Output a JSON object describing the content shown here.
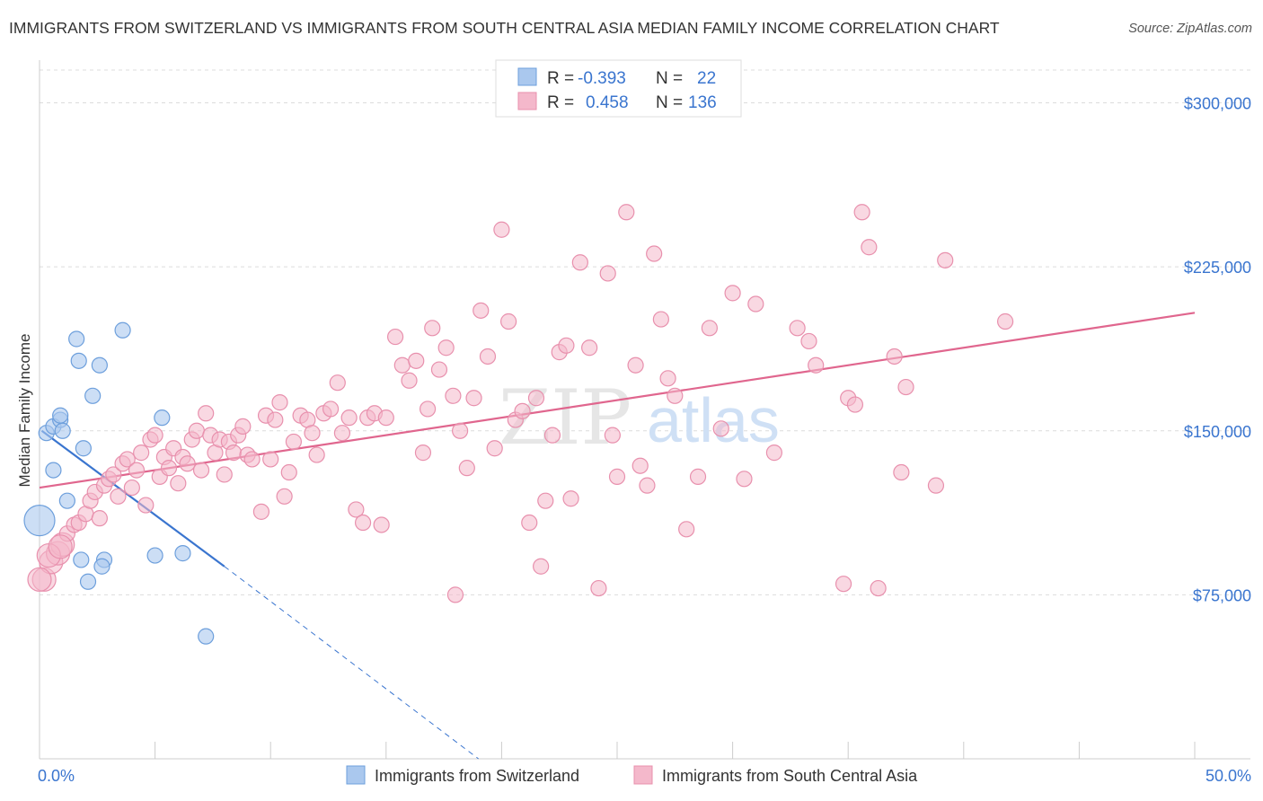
{
  "title": "IMMIGRANTS FROM SWITZERLAND VS IMMIGRANTS FROM SOUTH CENTRAL ASIA MEDIAN FAMILY INCOME CORRELATION CHART",
  "source": "Source: ZipAtlas.com",
  "watermark": {
    "zip": "ZIP",
    "atlas": "atlas"
  },
  "colors": {
    "blue_fill": "#aac8ee",
    "blue_stroke": "#6d9fdc",
    "blue_line": "#3a75cf",
    "pink_fill": "#f4b8cb",
    "pink_stroke": "#e890ad",
    "pink_line": "#e0668e",
    "value_text": "#3a75cf",
    "grid": "#dcdcdc"
  },
  "legend": {
    "rows": [
      {
        "r_label": "R =",
        "r_value": "-0.393",
        "n_label": "N =",
        "n_value": "22",
        "color": "blue"
      },
      {
        "r_label": "R =",
        "r_value": "0.458",
        "n_label": "N =",
        "n_value": "136",
        "color": "pink"
      }
    ]
  },
  "chart_data": {
    "type": "scatter",
    "xlabel": "",
    "ylabel": "Median Family Income",
    "xlim": [
      0,
      50
    ],
    "ylim": [
      0,
      315000
    ],
    "x_ticks_labels": [
      "0.0%",
      "50.0%"
    ],
    "y_ticks": [
      75000,
      150000,
      225000,
      300000
    ],
    "y_tick_labels": [
      "$75,000",
      "$150,000",
      "$225,000",
      "$300,000"
    ],
    "grid": "horizontal-dashed",
    "legend_position": "bottom",
    "series": [
      {
        "name": "Immigrants from Switzerland",
        "color": "blue",
        "trend": {
          "x0": 0.1,
          "y0": 150000,
          "x1": 8.0,
          "y1": 88000,
          "dash_to_x": 19.0,
          "dash_to_y": 0
        },
        "points": [
          [
            0.3,
            149000
          ],
          [
            0.6,
            152000
          ],
          [
            0.9,
            155000
          ],
          [
            0.9,
            157000
          ],
          [
            1.0,
            150000
          ],
          [
            0.6,
            132000
          ],
          [
            1.2,
            118000
          ],
          [
            1.6,
            192000
          ],
          [
            1.7,
            182000
          ],
          [
            1.9,
            142000
          ],
          [
            2.3,
            166000
          ],
          [
            2.6,
            180000
          ],
          [
            3.6,
            196000
          ],
          [
            5.3,
            156000
          ],
          [
            0.0,
            109000
          ],
          [
            1.8,
            91000
          ],
          [
            2.8,
            91000
          ],
          [
            2.7,
            88000
          ],
          [
            2.1,
            81000
          ],
          [
            5.0,
            93000
          ],
          [
            6.2,
            94000
          ],
          [
            7.2,
            56000
          ]
        ],
        "big_point_index": 14
      },
      {
        "name": "Immigrants from South Central Asia",
        "color": "pink",
        "trend": {
          "x0": 0.0,
          "y0": 124000,
          "x1": 50.0,
          "y1": 204000
        },
        "points": [
          [
            0.2,
            82000
          ],
          [
            0.5,
            90000
          ],
          [
            0.8,
            94000
          ],
          [
            1.0,
            98000
          ],
          [
            1.2,
            103000
          ],
          [
            1.5,
            107000
          ],
          [
            1.7,
            108000
          ],
          [
            2.0,
            112000
          ],
          [
            2.2,
            118000
          ],
          [
            2.4,
            122000
          ],
          [
            2.6,
            110000
          ],
          [
            2.8,
            125000
          ],
          [
            3.0,
            128000
          ],
          [
            3.2,
            130000
          ],
          [
            3.4,
            120000
          ],
          [
            3.6,
            135000
          ],
          [
            3.8,
            137000
          ],
          [
            4.0,
            124000
          ],
          [
            4.2,
            132000
          ],
          [
            4.4,
            140000
          ],
          [
            4.6,
            116000
          ],
          [
            4.8,
            146000
          ],
          [
            5.0,
            148000
          ],
          [
            5.2,
            129000
          ],
          [
            5.4,
            138000
          ],
          [
            5.6,
            133000
          ],
          [
            5.8,
            142000
          ],
          [
            6.0,
            126000
          ],
          [
            6.2,
            138000
          ],
          [
            6.4,
            135000
          ],
          [
            6.6,
            146000
          ],
          [
            6.8,
            150000
          ],
          [
            7.0,
            132000
          ],
          [
            7.2,
            158000
          ],
          [
            7.4,
            148000
          ],
          [
            7.6,
            140000
          ],
          [
            7.8,
            146000
          ],
          [
            8.0,
            130000
          ],
          [
            8.2,
            145000
          ],
          [
            8.4,
            140000
          ],
          [
            8.6,
            148000
          ],
          [
            8.8,
            152000
          ],
          [
            9.0,
            139000
          ],
          [
            9.2,
            137000
          ],
          [
            9.6,
            113000
          ],
          [
            9.8,
            157000
          ],
          [
            10.0,
            137000
          ],
          [
            10.2,
            155000
          ],
          [
            10.4,
            163000
          ],
          [
            10.6,
            120000
          ],
          [
            10.8,
            131000
          ],
          [
            11.0,
            145000
          ],
          [
            11.3,
            157000
          ],
          [
            11.6,
            155000
          ],
          [
            11.8,
            149000
          ],
          [
            12.0,
            139000
          ],
          [
            12.3,
            158000
          ],
          [
            12.6,
            160000
          ],
          [
            12.9,
            172000
          ],
          [
            13.1,
            149000
          ],
          [
            13.4,
            156000
          ],
          [
            13.7,
            114000
          ],
          [
            14.0,
            108000
          ],
          [
            14.2,
            156000
          ],
          [
            14.5,
            158000
          ],
          [
            14.8,
            107000
          ],
          [
            15.0,
            156000
          ],
          [
            15.4,
            193000
          ],
          [
            15.7,
            180000
          ],
          [
            16.0,
            173000
          ],
          [
            16.3,
            182000
          ],
          [
            16.6,
            140000
          ],
          [
            16.8,
            160000
          ],
          [
            17.0,
            197000
          ],
          [
            17.3,
            178000
          ],
          [
            17.6,
            188000
          ],
          [
            17.9,
            166000
          ],
          [
            18.2,
            150000
          ],
          [
            18.5,
            133000
          ],
          [
            18.8,
            165000
          ],
          [
            19.1,
            205000
          ],
          [
            19.4,
            184000
          ],
          [
            19.7,
            142000
          ],
          [
            20.0,
            242000
          ],
          [
            20.3,
            200000
          ],
          [
            20.6,
            155000
          ],
          [
            20.9,
            159000
          ],
          [
            21.2,
            108000
          ],
          [
            21.5,
            165000
          ],
          [
            21.7,
            88000
          ],
          [
            21.9,
            118000
          ],
          [
            22.2,
            148000
          ],
          [
            22.5,
            186000
          ],
          [
            22.8,
            189000
          ],
          [
            23.0,
            119000
          ],
          [
            23.4,
            227000
          ],
          [
            23.8,
            188000
          ],
          [
            24.2,
            78000
          ],
          [
            24.6,
            222000
          ],
          [
            24.8,
            148000
          ],
          [
            25.0,
            129000
          ],
          [
            25.4,
            250000
          ],
          [
            25.8,
            180000
          ],
          [
            26.0,
            134000
          ],
          [
            26.3,
            125000
          ],
          [
            26.6,
            231000
          ],
          [
            26.9,
            201000
          ],
          [
            27.2,
            174000
          ],
          [
            27.5,
            166000
          ],
          [
            28.0,
            105000
          ],
          [
            28.5,
            129000
          ],
          [
            29.0,
            197000
          ],
          [
            29.5,
            151000
          ],
          [
            30.0,
            213000
          ],
          [
            30.5,
            128000
          ],
          [
            31.0,
            208000
          ],
          [
            31.8,
            140000
          ],
          [
            32.8,
            197000
          ],
          [
            33.3,
            191000
          ],
          [
            33.6,
            180000
          ],
          [
            34.8,
            80000
          ],
          [
            35.0,
            165000
          ],
          [
            35.3,
            162000
          ],
          [
            35.6,
            250000
          ],
          [
            35.9,
            234000
          ],
          [
            36.3,
            78000
          ],
          [
            37.0,
            184000
          ],
          [
            37.3,
            131000
          ],
          [
            37.5,
            170000
          ],
          [
            38.8,
            125000
          ],
          [
            39.2,
            228000
          ],
          [
            41.8,
            200000
          ],
          [
            18.0,
            75000
          ],
          [
            0.0,
            82000
          ],
          [
            0.4,
            93000
          ],
          [
            0.9,
            97000
          ]
        ]
      }
    ]
  }
}
